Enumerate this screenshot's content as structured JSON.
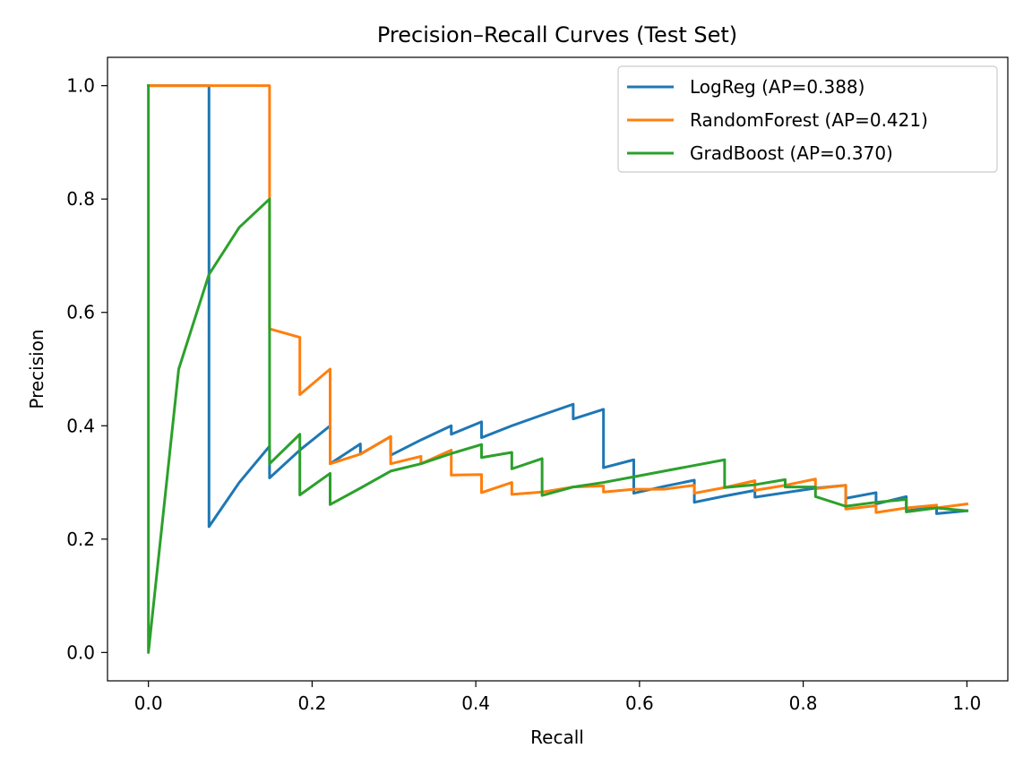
{
  "chart_data": {
    "type": "line",
    "title": "Precision–Recall Curves (Test Set)",
    "xlabel": "Recall",
    "ylabel": "Precision",
    "xlim": [
      -0.05,
      1.05
    ],
    "ylim": [
      -0.05,
      1.05
    ],
    "xticks": [
      0.0,
      0.2,
      0.4,
      0.6,
      0.8,
      1.0
    ],
    "yticks": [
      0.0,
      0.2,
      0.4,
      0.6,
      0.8,
      1.0
    ],
    "xtick_labels": [
      "0.0",
      "0.2",
      "0.4",
      "0.6",
      "0.8",
      "1.0"
    ],
    "ytick_labels": [
      "0.0",
      "0.2",
      "0.4",
      "0.6",
      "0.8",
      "1.0"
    ],
    "grid": false,
    "legend_position": "top-right",
    "series": [
      {
        "name": "LogReg (AP=0.388)",
        "color": "#1f77b4",
        "points": [
          [
            0.0,
            1.0
          ],
          [
            0.074,
            1.0
          ],
          [
            0.074,
            0.222
          ],
          [
            0.111,
            0.3
          ],
          [
            0.148,
            0.364
          ],
          [
            0.148,
            0.308
          ],
          [
            0.185,
            0.357
          ],
          [
            0.222,
            0.4
          ],
          [
            0.222,
            0.333
          ],
          [
            0.259,
            0.368
          ],
          [
            0.259,
            0.35
          ],
          [
            0.296,
            0.381
          ],
          [
            0.296,
            0.348
          ],
          [
            0.333,
            0.375
          ],
          [
            0.37,
            0.4
          ],
          [
            0.37,
            0.385
          ],
          [
            0.407,
            0.407
          ],
          [
            0.407,
            0.379
          ],
          [
            0.444,
            0.4
          ],
          [
            0.481,
            0.419
          ],
          [
            0.519,
            0.438
          ],
          [
            0.519,
            0.412
          ],
          [
            0.556,
            0.429
          ],
          [
            0.556,
            0.326
          ],
          [
            0.593,
            0.34
          ],
          [
            0.593,
            0.281
          ],
          [
            0.63,
            0.293
          ],
          [
            0.667,
            0.304
          ],
          [
            0.667,
            0.265
          ],
          [
            0.704,
            0.276
          ],
          [
            0.741,
            0.286
          ],
          [
            0.741,
            0.274
          ],
          [
            0.778,
            0.282
          ],
          [
            0.815,
            0.29
          ],
          [
            0.852,
            0.295
          ],
          [
            0.852,
            0.256
          ],
          [
            0.852,
            0.272
          ],
          [
            0.889,
            0.282
          ],
          [
            0.889,
            0.262
          ],
          [
            0.926,
            0.275
          ],
          [
            0.926,
            0.25
          ],
          [
            0.963,
            0.256
          ],
          [
            0.963,
            0.245
          ],
          [
            1.0,
            0.25
          ]
        ]
      },
      {
        "name": "RandomForest (AP=0.421)",
        "color": "#ff7f0e",
        "points": [
          [
            0.0,
            1.0
          ],
          [
            0.148,
            1.0
          ],
          [
            0.148,
            0.571
          ],
          [
            0.185,
            0.556
          ],
          [
            0.185,
            0.455
          ],
          [
            0.222,
            0.5
          ],
          [
            0.222,
            0.333
          ],
          [
            0.259,
            0.35
          ],
          [
            0.296,
            0.381
          ],
          [
            0.296,
            0.333
          ],
          [
            0.333,
            0.346
          ],
          [
            0.333,
            0.333
          ],
          [
            0.37,
            0.357
          ],
          [
            0.37,
            0.313
          ],
          [
            0.407,
            0.314
          ],
          [
            0.407,
            0.282
          ],
          [
            0.444,
            0.3
          ],
          [
            0.444,
            0.279
          ],
          [
            0.481,
            0.283
          ],
          [
            0.519,
            0.292
          ],
          [
            0.556,
            0.294
          ],
          [
            0.556,
            0.283
          ],
          [
            0.593,
            0.288
          ],
          [
            0.63,
            0.288
          ],
          [
            0.667,
            0.295
          ],
          [
            0.667,
            0.281
          ],
          [
            0.704,
            0.291
          ],
          [
            0.741,
            0.303
          ],
          [
            0.741,
            0.286
          ],
          [
            0.778,
            0.295
          ],
          [
            0.815,
            0.306
          ],
          [
            0.815,
            0.289
          ],
          [
            0.852,
            0.295
          ],
          [
            0.852,
            0.253
          ],
          [
            0.889,
            0.259
          ],
          [
            0.889,
            0.247
          ],
          [
            0.926,
            0.255
          ],
          [
            0.963,
            0.26
          ],
          [
            0.963,
            0.255
          ],
          [
            1.0,
            0.262
          ]
        ]
      },
      {
        "name": "GradBoost (AP=0.370)",
        "color": "#2ca02c",
        "points": [
          [
            0.0,
            1.0
          ],
          [
            0.0,
            0.0
          ],
          [
            0.037,
            0.5
          ],
          [
            0.074,
            0.667
          ],
          [
            0.111,
            0.75
          ],
          [
            0.148,
            0.8
          ],
          [
            0.148,
            0.333
          ],
          [
            0.185,
            0.385
          ],
          [
            0.185,
            0.278
          ],
          [
            0.222,
            0.316
          ],
          [
            0.222,
            0.261
          ],
          [
            0.259,
            0.29
          ],
          [
            0.296,
            0.32
          ],
          [
            0.333,
            0.333
          ],
          [
            0.37,
            0.351
          ],
          [
            0.407,
            0.367
          ],
          [
            0.407,
            0.344
          ],
          [
            0.444,
            0.353
          ],
          [
            0.444,
            0.324
          ],
          [
            0.481,
            0.342
          ],
          [
            0.481,
            0.277
          ],
          [
            0.519,
            0.292
          ],
          [
            0.556,
            0.3
          ],
          [
            0.593,
            0.31
          ],
          [
            0.63,
            0.32
          ],
          [
            0.667,
            0.33
          ],
          [
            0.704,
            0.34
          ],
          [
            0.704,
            0.291
          ],
          [
            0.741,
            0.296
          ],
          [
            0.778,
            0.305
          ],
          [
            0.778,
            0.292
          ],
          [
            0.815,
            0.292
          ],
          [
            0.815,
            0.275
          ],
          [
            0.852,
            0.258
          ],
          [
            0.889,
            0.265
          ],
          [
            0.926,
            0.27
          ],
          [
            0.926,
            0.248
          ],
          [
            0.963,
            0.255
          ],
          [
            1.0,
            0.25
          ]
        ]
      }
    ]
  }
}
